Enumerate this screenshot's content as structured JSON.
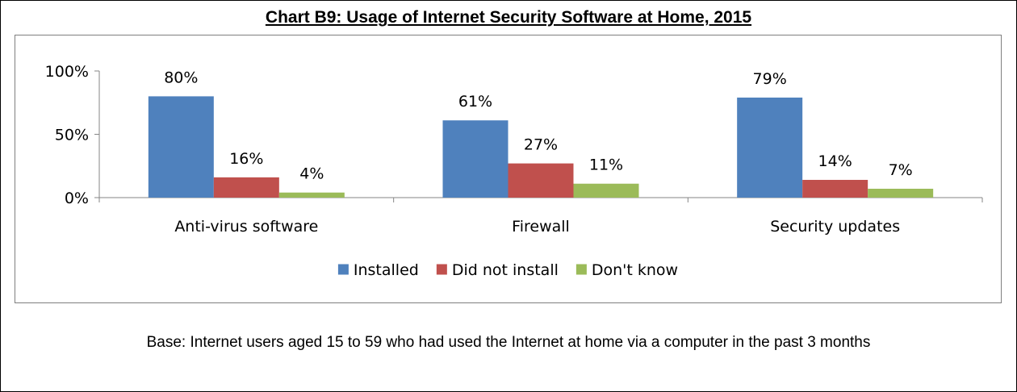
{
  "chart_data": {
    "type": "bar",
    "title": "Chart B9: Usage of Internet Security Software at Home, 2015",
    "categories": [
      "Anti-virus software",
      "Firewall",
      "Security updates"
    ],
    "series": [
      {
        "name": "Installed",
        "values": [
          80,
          61,
          79
        ],
        "labels": [
          "80%",
          "61%",
          "79%"
        ],
        "color": "#4f81bd"
      },
      {
        "name": "Did not install",
        "values": [
          16,
          27,
          14
        ],
        "labels": [
          "16%",
          "27%",
          "14%"
        ],
        "color": "#c0504d"
      },
      {
        "name": "Don't know",
        "values": [
          4,
          11,
          7
        ],
        "labels": [
          "4%",
          "11%",
          "7%"
        ],
        "color": "#9bbb59"
      }
    ],
    "yticks": [
      0,
      50,
      100
    ],
    "ytick_labels": [
      "0%",
      "50%",
      "100%"
    ],
    "ylim": [
      0,
      100
    ],
    "xlabel": "",
    "ylabel": "",
    "grid": false,
    "legend_position": "bottom"
  },
  "caption": "Base: Internet users aged 15 to 59 who had used the Internet at home via a computer in the past 3 months"
}
